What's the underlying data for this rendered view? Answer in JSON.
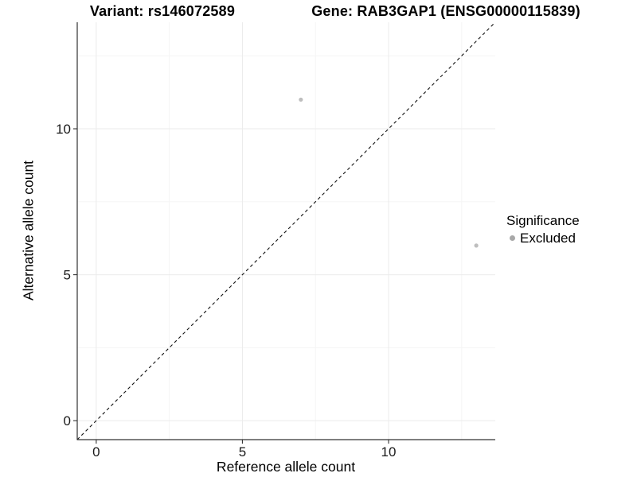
{
  "chart_data": {
    "type": "scatter",
    "titles": {
      "variant": "Variant: rs146072589",
      "gene": "Gene: RAB3GAP1 (ENSG00000115839)"
    },
    "xlabel": "Reference allele count",
    "ylabel": "Alternative allele count",
    "xlim": [
      0,
      13
    ],
    "ylim": [
      0,
      13
    ],
    "expansion": 0.05,
    "xticks": [
      0,
      5,
      10
    ],
    "yticks": [
      0,
      5,
      10
    ],
    "minor_ticks": [
      2.5,
      7.5,
      12.5
    ],
    "grid": "on",
    "points": [
      {
        "x": 7,
        "y": 11,
        "significance": "Excluded"
      },
      {
        "x": 13,
        "y": 6,
        "significance": "Excluded"
      }
    ],
    "identity_line": {
      "slope": 1,
      "intercept": 0,
      "style": "dashed",
      "color": "#111111"
    },
    "legend": {
      "title": "Significance",
      "position": "right",
      "entries": [
        {
          "label": "Excluded",
          "color": "#a8a8a8"
        }
      ]
    },
    "colors": {
      "point": "#bebebe",
      "axis": "#333333",
      "tick_text": "#1a1a1a",
      "grid_major": "#ebebeb",
      "grid_minor": "#f5f5f5"
    }
  }
}
